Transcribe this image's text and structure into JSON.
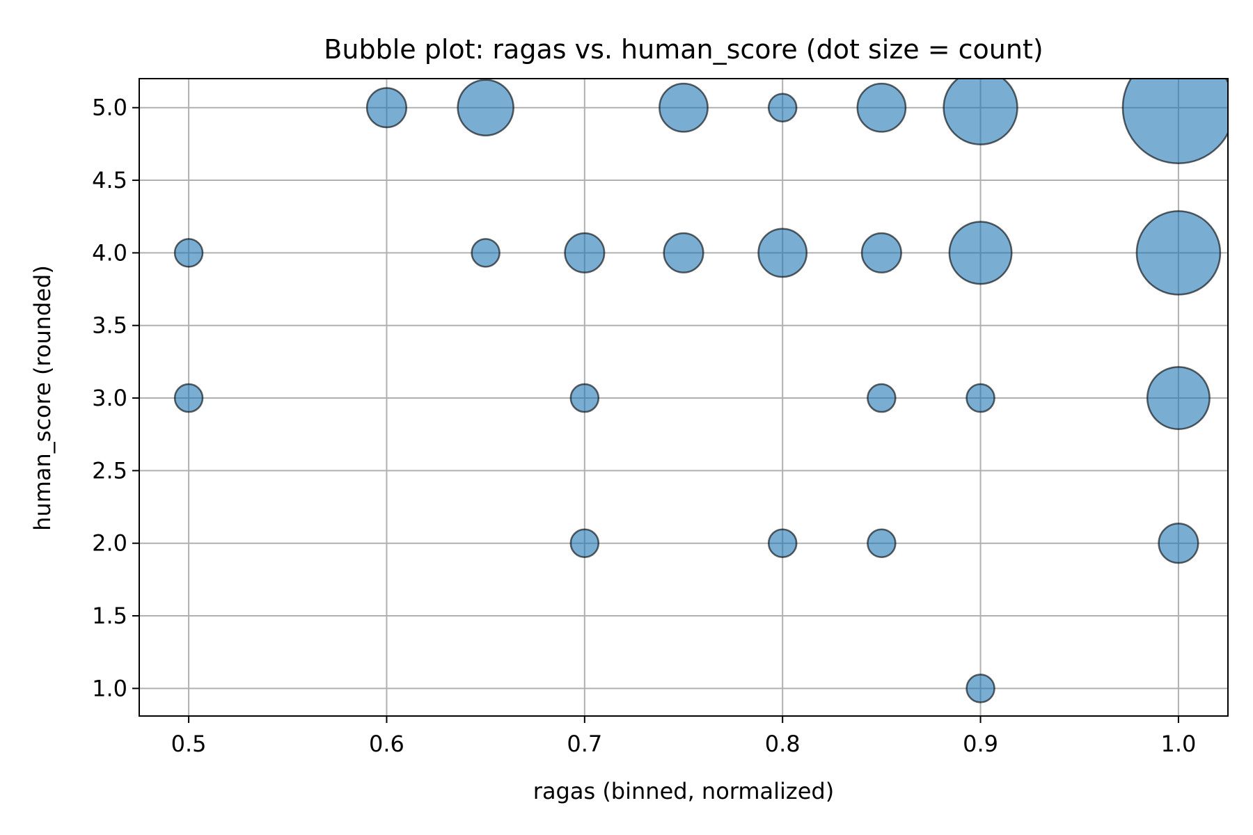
{
  "chart_data": {
    "type": "scatter",
    "subtype": "bubble",
    "title": "Bubble plot: ragas vs. human_score (dot size = count)",
    "xlabel": "ragas (binned, normalized)",
    "ylabel": "human_score (rounded)",
    "xlim": [
      0.475,
      1.025
    ],
    "ylim": [
      0.81,
      5.2
    ],
    "xticks": [
      0.5,
      0.6,
      0.7,
      0.8,
      0.9,
      1.0
    ],
    "xtick_labels": [
      "0.5",
      "0.6",
      "0.7",
      "0.8",
      "0.9",
      "1.0"
    ],
    "yticks": [
      1.0,
      1.5,
      2.0,
      2.5,
      3.0,
      3.5,
      4.0,
      4.5,
      5.0
    ],
    "ytick_labels": [
      "1.0",
      "1.5",
      "2.0",
      "2.5",
      "3.0",
      "3.5",
      "4.0",
      "4.5",
      "5.0"
    ],
    "grid": true,
    "legend": false,
    "marker_color": "#1f77b4",
    "marker_alpha": 0.6,
    "marker_edge_color": "#000000",
    "size_encoding": "count",
    "points": [
      {
        "x": 0.6,
        "y": 5.0,
        "count": 2
      },
      {
        "x": 0.65,
        "y": 5.0,
        "count": 4
      },
      {
        "x": 0.75,
        "y": 5.0,
        "count": 3
      },
      {
        "x": 0.8,
        "y": 5.0,
        "count": 1
      },
      {
        "x": 0.85,
        "y": 5.0,
        "count": 3
      },
      {
        "x": 0.9,
        "y": 5.0,
        "count": 7
      },
      {
        "x": 1.0,
        "y": 5.0,
        "count": 16
      },
      {
        "x": 0.5,
        "y": 4.0,
        "count": 1
      },
      {
        "x": 0.65,
        "y": 4.0,
        "count": 1
      },
      {
        "x": 0.7,
        "y": 4.0,
        "count": 2
      },
      {
        "x": 0.75,
        "y": 4.0,
        "count": 2
      },
      {
        "x": 0.8,
        "y": 4.0,
        "count": 3
      },
      {
        "x": 0.85,
        "y": 4.0,
        "count": 2
      },
      {
        "x": 0.9,
        "y": 4.0,
        "count": 5
      },
      {
        "x": 1.0,
        "y": 4.0,
        "count": 9
      },
      {
        "x": 0.5,
        "y": 3.0,
        "count": 1
      },
      {
        "x": 0.7,
        "y": 3.0,
        "count": 1
      },
      {
        "x": 0.85,
        "y": 3.0,
        "count": 1
      },
      {
        "x": 0.9,
        "y": 3.0,
        "count": 1
      },
      {
        "x": 1.0,
        "y": 3.0,
        "count": 5
      },
      {
        "x": 0.7,
        "y": 2.0,
        "count": 1
      },
      {
        "x": 0.8,
        "y": 2.0,
        "count": 1
      },
      {
        "x": 0.85,
        "y": 2.0,
        "count": 1
      },
      {
        "x": 1.0,
        "y": 2.0,
        "count": 2
      },
      {
        "x": 0.9,
        "y": 1.0,
        "count": 1
      }
    ]
  }
}
